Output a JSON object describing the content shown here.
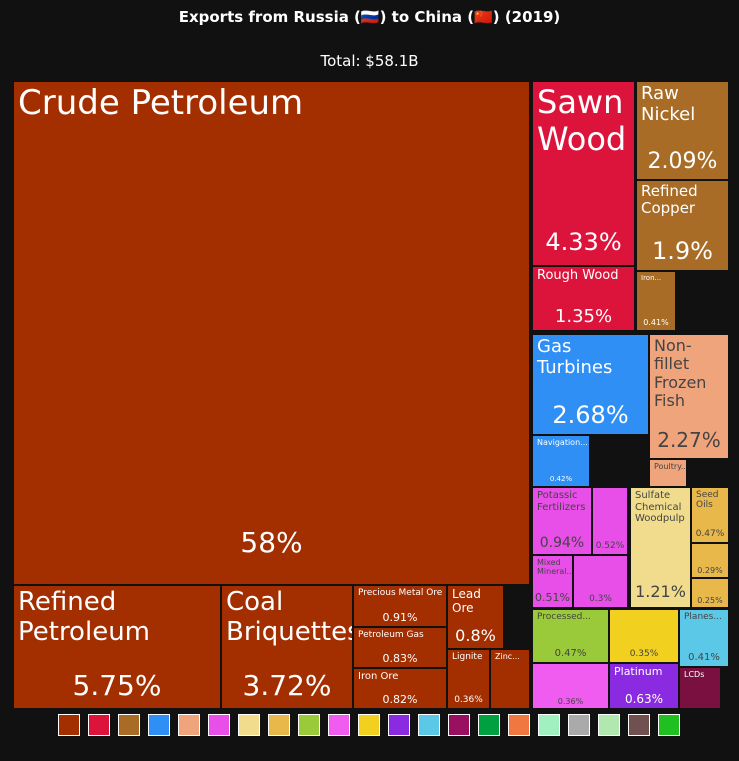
{
  "chart_data": {
    "type": "treemap",
    "title": "Exports from Russia (🇷🇺) to China (🇨🇳) (2019)",
    "subtitle": "Total: $58.1B",
    "categories": [
      "Crude Petroleum",
      "Refined Petroleum",
      "Coal Briquettes",
      "Precious Metal Ore",
      "Petroleum Gas",
      "Iron Ore",
      "Lead Ore",
      "Lignite",
      "Zinc...",
      "Sawn Wood",
      "Rough Wood",
      "Raw Nickel",
      "Refined Copper",
      "Iron...",
      "Gas Turbines",
      "Navigation...",
      "Non-fillet Frozen Fish",
      "Poultry...",
      "Potassic Fertilizers",
      null,
      "Mixed Mineral...",
      null,
      "Sulfate Chemical Woodpulp",
      "Seed Oils",
      null,
      null,
      "Processed...",
      null,
      "Planes...",
      null,
      "Platinum",
      "LCDs"
    ],
    "values": [
      58,
      5.75,
      3.72,
      0.91,
      0.83,
      0.82,
      0.8,
      0.36,
      0.3,
      4.33,
      1.35,
      2.09,
      1.9,
      0.41,
      2.68,
      0.42,
      2.27,
      0.3,
      0.94,
      0.52,
      0.51,
      0.3,
      1.21,
      0.47,
      0.29,
      0.25,
      0.47,
      0.35,
      0.41,
      0.36,
      0.63,
      0.2
    ],
    "value_labels": [
      "58%",
      "5.75%",
      "3.72%",
      "0.91%",
      "0.83%",
      "0.82%",
      "0.8%",
      "0.36%",
      null,
      "4.33%",
      "1.35%",
      "2.09%",
      "1.9%",
      "0.41%",
      "2.68%",
      "0.42%",
      "2.27%",
      null,
      "0.94%",
      "0.52%",
      "0.51%",
      "0.3%",
      "1.21%",
      "0.47%",
      "0.29%",
      "0.25%",
      "0.47%",
      "0.35%",
      "0.41%",
      "0.36%",
      "0.63%",
      null
    ],
    "colors": [
      "#a32e00",
      "#a32e00",
      "#a32e00",
      "#a32e00",
      "#a32e00",
      "#a32e00",
      "#a32e00",
      "#a32e00",
      "#a32e00",
      "#dc143c",
      "#dc143c",
      "#a86c26",
      "#a86c26",
      "#a86c26",
      "#2f8ff5",
      "#2f8ff5",
      "#f0a47c",
      "#f0a47c",
      "#e84ee8",
      "#e84ee8",
      "#e84ee8",
      "#e84ee8",
      "#f0dc8c",
      "#e8b84a",
      "#e8b84a",
      "#e8b84a",
      "#9ac93a",
      "#f2d020",
      "#5bc8e8",
      "#f05cf0",
      "#8a2be2",
      "#7a1040"
    ]
  }
}
